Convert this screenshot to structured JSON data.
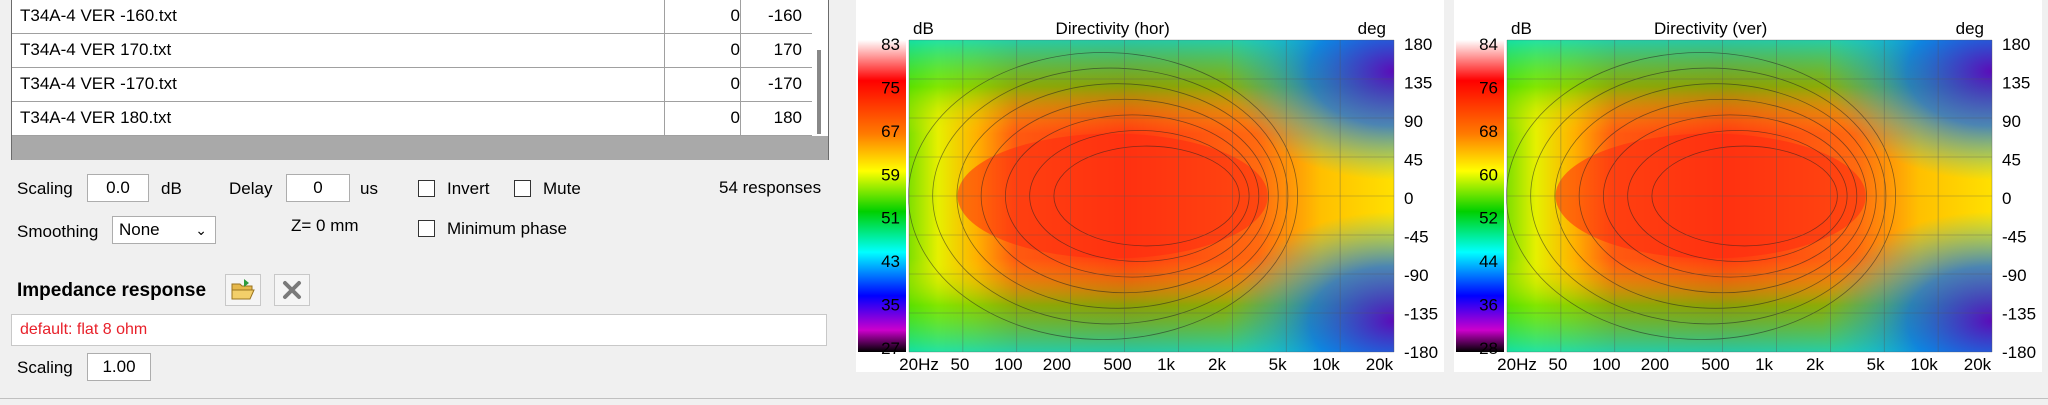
{
  "responses_table": {
    "rows": [
      {
        "file": "T34A-4 VER -160.txt",
        "delay": "0",
        "angle": "-160"
      },
      {
        "file": "T34A-4 VER 170.txt",
        "delay": "0",
        "angle": "170"
      },
      {
        "file": "T34A-4 VER -170.txt",
        "delay": "0",
        "angle": "-170"
      },
      {
        "file": "T34A-4 VER 180.txt",
        "delay": "0",
        "angle": "180"
      }
    ]
  },
  "controls": {
    "scaling_label": "Scaling",
    "scaling_value": "0.0",
    "scaling_unit": "dB",
    "delay_label": "Delay",
    "delay_value": "0",
    "delay_unit": "us",
    "invert_label": "Invert",
    "mute_label": "Mute",
    "responses_count": "54 responses",
    "smoothing_label": "Smoothing",
    "smoothing_value": "None",
    "z_label": "Z= 0 mm",
    "min_phase_label": "Minimum phase"
  },
  "impedance": {
    "title": "Impedance response",
    "open_icon": "folder-open-icon",
    "clear_icon": "close-icon",
    "value": "default: flat 8 ohm",
    "value_color": "#e8202a",
    "scaling_label": "Scaling",
    "scaling_value": "1.00"
  },
  "charts": [
    {
      "title": "Directivity (hor)",
      "db_unit": "dB",
      "deg_unit": "deg",
      "db_ticks": [
        "83",
        "75",
        "67",
        "59",
        "51",
        "43",
        "35",
        "27"
      ],
      "deg_ticks": [
        "180",
        "135",
        "90",
        "45",
        "0",
        "-45",
        "-90",
        "-135",
        "-180"
      ],
      "freq_ticks": [
        "20Hz",
        "50",
        "100",
        "200",
        "500",
        "1k",
        "2k",
        "5k",
        "10k",
        "20k"
      ]
    },
    {
      "title": "Directivity (ver)",
      "db_unit": "dB",
      "deg_unit": "deg",
      "db_ticks": [
        "84",
        "76",
        "68",
        "60",
        "52",
        "44",
        "36",
        "28"
      ],
      "deg_ticks": [
        "180",
        "135",
        "90",
        "45",
        "0",
        "-45",
        "-90",
        "-135",
        "-180"
      ],
      "freq_ticks": [
        "20Hz",
        "50",
        "100",
        "200",
        "500",
        "1k",
        "2k",
        "5k",
        "10k",
        "20k"
      ]
    }
  ]
}
